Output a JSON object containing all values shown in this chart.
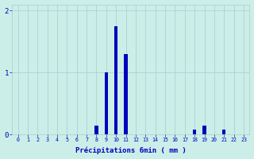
{
  "bar_values": [
    0,
    0,
    0,
    0,
    0,
    0,
    0,
    0,
    0.15,
    1.0,
    1.75,
    1.3,
    0,
    0,
    0,
    0,
    0,
    0,
    0.08,
    0.15,
    0,
    0.08,
    0,
    0
  ],
  "bar_color": "#0000bb",
  "background_color": "#cceee8",
  "grid_color": "#aacccc",
  "text_color": "#0000bb",
  "xlabel": "Précipitations 6min ( mm )",
  "ylim": [
    0,
    2.1
  ],
  "yticks": [
    0,
    1,
    2
  ],
  "xticks": [
    0,
    1,
    2,
    3,
    4,
    5,
    6,
    7,
    8,
    9,
    10,
    11,
    12,
    13,
    14,
    15,
    16,
    17,
    18,
    19,
    20,
    21,
    22,
    23
  ],
  "bar_width": 0.35,
  "figsize": [
    3.2,
    2.0
  ],
  "dpi": 100
}
